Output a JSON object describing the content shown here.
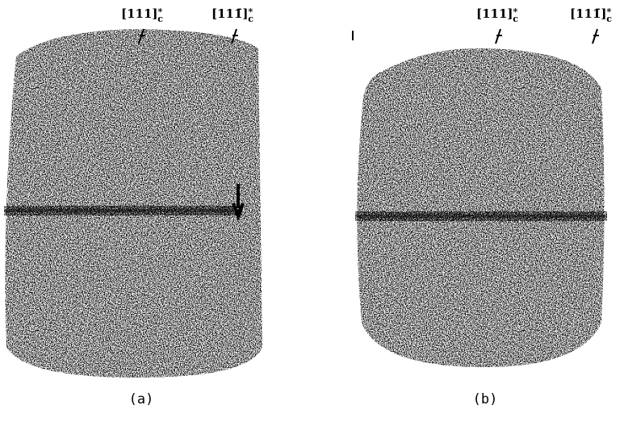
{
  "panels": [
    {
      "label": "(a)",
      "markers": [
        {
          "text": "[111]",
          "sup": "*",
          "sub": "c"
        },
        {
          "text": "[111̄]",
          "sup": "*",
          "sub": "c"
        }
      ]
    },
    {
      "label": "(b)",
      "markers": [
        {
          "text": "[111]",
          "sup": "*",
          "sub": "c"
        },
        {
          "text": "[111̄]",
          "sup": "*",
          "sub": "c"
        }
      ]
    }
  ]
}
